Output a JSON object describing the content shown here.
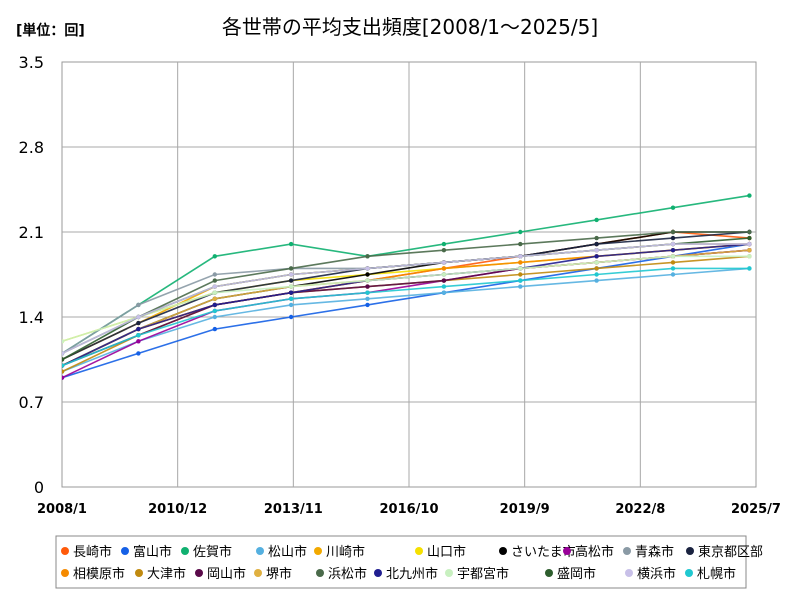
{
  "chart_data": {
    "type": "line",
    "title": "各世帯の平均支出頻度[2008/1～2025/5]",
    "unit_label": "[単位：回]",
    "xlabel": "",
    "ylabel": "",
    "x_start": "2008/1",
    "x_end": "2025/5",
    "ylim": [
      0,
      3.5
    ],
    "y_ticks": [
      {
        "value": 0,
        "label": "0"
      },
      {
        "value": 0.7,
        "label": "0.7"
      },
      {
        "value": 1.4,
        "label": "1.4"
      },
      {
        "value": 2.1,
        "label": "2.1"
      },
      {
        "value": 2.8,
        "label": "2.8"
      },
      {
        "value": 3.5,
        "label": "3.5"
      }
    ],
    "x_ticks": [
      "2008/1",
      "2010/12",
      "2013/11",
      "2016/10",
      "2019/9",
      "2022/8",
      "2025/7"
    ],
    "grid": true,
    "legend_position": "bottom",
    "series": [
      {
        "name": "長崎市",
        "color": "#FF5A0A",
        "values": [
          1.0,
          1.3,
          1.5,
          1.6,
          1.7,
          1.8,
          1.9,
          2.0,
          2.1,
          2.05
        ]
      },
      {
        "name": "富山市",
        "color": "#1560E6",
        "values": [
          0.9,
          1.1,
          1.3,
          1.4,
          1.5,
          1.6,
          1.7,
          1.8,
          1.9,
          2.0
        ]
      },
      {
        "name": "佐賀市",
        "color": "#10B070",
        "values": [
          1.1,
          1.5,
          1.9,
          2.0,
          1.9,
          2.0,
          2.1,
          2.2,
          2.3,
          2.4
        ]
      },
      {
        "name": "松山市",
        "color": "#55B0E0",
        "values": [
          0.95,
          1.2,
          1.4,
          1.5,
          1.55,
          1.6,
          1.65,
          1.7,
          1.75,
          1.8
        ]
      },
      {
        "name": "川崎市",
        "color": "#F2A900",
        "values": [
          1.05,
          1.35,
          1.65,
          1.75,
          1.8,
          1.85,
          1.9,
          1.95,
          2.0,
          2.0
        ]
      },
      {
        "name": "山口市",
        "color": "#F5E000",
        "values": [
          1.2,
          1.4,
          1.6,
          1.7,
          1.75,
          1.8,
          1.85,
          1.9,
          1.95,
          2.0
        ]
      },
      {
        "name": "さいたま市",
        "color": "#000000",
        "values": [
          1.0,
          1.3,
          1.55,
          1.65,
          1.75,
          1.85,
          1.9,
          2.0,
          2.1,
          2.1
        ]
      },
      {
        "name": "高松市",
        "color": "#990099",
        "values": [
          0.9,
          1.2,
          1.45,
          1.55,
          1.6,
          1.7,
          1.8,
          1.85,
          1.9,
          1.95
        ]
      },
      {
        "name": "青森市",
        "color": "#8A9AA5",
        "values": [
          1.1,
          1.5,
          1.75,
          1.8,
          1.8,
          1.85,
          1.9,
          1.95,
          2.0,
          2.0
        ]
      },
      {
        "name": "東京都区部",
        "color": "#1A2340",
        "values": [
          1.05,
          1.35,
          1.6,
          1.7,
          1.8,
          1.85,
          1.9,
          2.0,
          2.05,
          2.1
        ]
      },
      {
        "name": "相模原市",
        "color": "#F58A00",
        "values": [
          1.0,
          1.3,
          1.5,
          1.6,
          1.7,
          1.8,
          1.85,
          1.9,
          1.95,
          2.0
        ]
      },
      {
        "name": "大津市",
        "color": "#C08A10",
        "values": [
          0.95,
          1.25,
          1.5,
          1.6,
          1.65,
          1.7,
          1.75,
          1.8,
          1.85,
          1.9
        ]
      },
      {
        "name": "岡山市",
        "color": "#5A0A4A",
        "values": [
          1.0,
          1.25,
          1.5,
          1.6,
          1.65,
          1.7,
          1.8,
          1.85,
          1.9,
          1.95
        ]
      },
      {
        "name": "堺市",
        "color": "#E0B040",
        "values": [
          1.0,
          1.3,
          1.55,
          1.65,
          1.7,
          1.75,
          1.8,
          1.85,
          1.9,
          1.95
        ]
      },
      {
        "name": "浜松市",
        "color": "#4A6A4A",
        "values": [
          1.1,
          1.4,
          1.7,
          1.8,
          1.9,
          1.95,
          2.0,
          2.05,
          2.1,
          2.1
        ]
      },
      {
        "name": "北九州市",
        "color": "#201E90",
        "values": [
          1.0,
          1.3,
          1.5,
          1.6,
          1.7,
          1.75,
          1.8,
          1.9,
          1.95,
          2.0
        ]
      },
      {
        "name": "宇都宮市",
        "color": "#C8F0C0",
        "values": [
          1.2,
          1.4,
          1.6,
          1.65,
          1.7,
          1.75,
          1.8,
          1.85,
          1.9,
          1.9
        ]
      },
      {
        "name": "盛岡市",
        "color": "#2E5E2E",
        "values": [
          1.05,
          1.4,
          1.65,
          1.75,
          1.8,
          1.85,
          1.9,
          1.95,
          2.0,
          2.05
        ]
      },
      {
        "name": "横浜市",
        "color": "#C8C0E8",
        "values": [
          1.1,
          1.4,
          1.65,
          1.75,
          1.8,
          1.85,
          1.9,
          1.95,
          2.0,
          2.0
        ]
      },
      {
        "name": "札幌市",
        "color": "#20C8D0",
        "values": [
          1.0,
          1.25,
          1.45,
          1.55,
          1.6,
          1.65,
          1.7,
          1.75,
          1.8,
          1.8
        ]
      }
    ]
  }
}
